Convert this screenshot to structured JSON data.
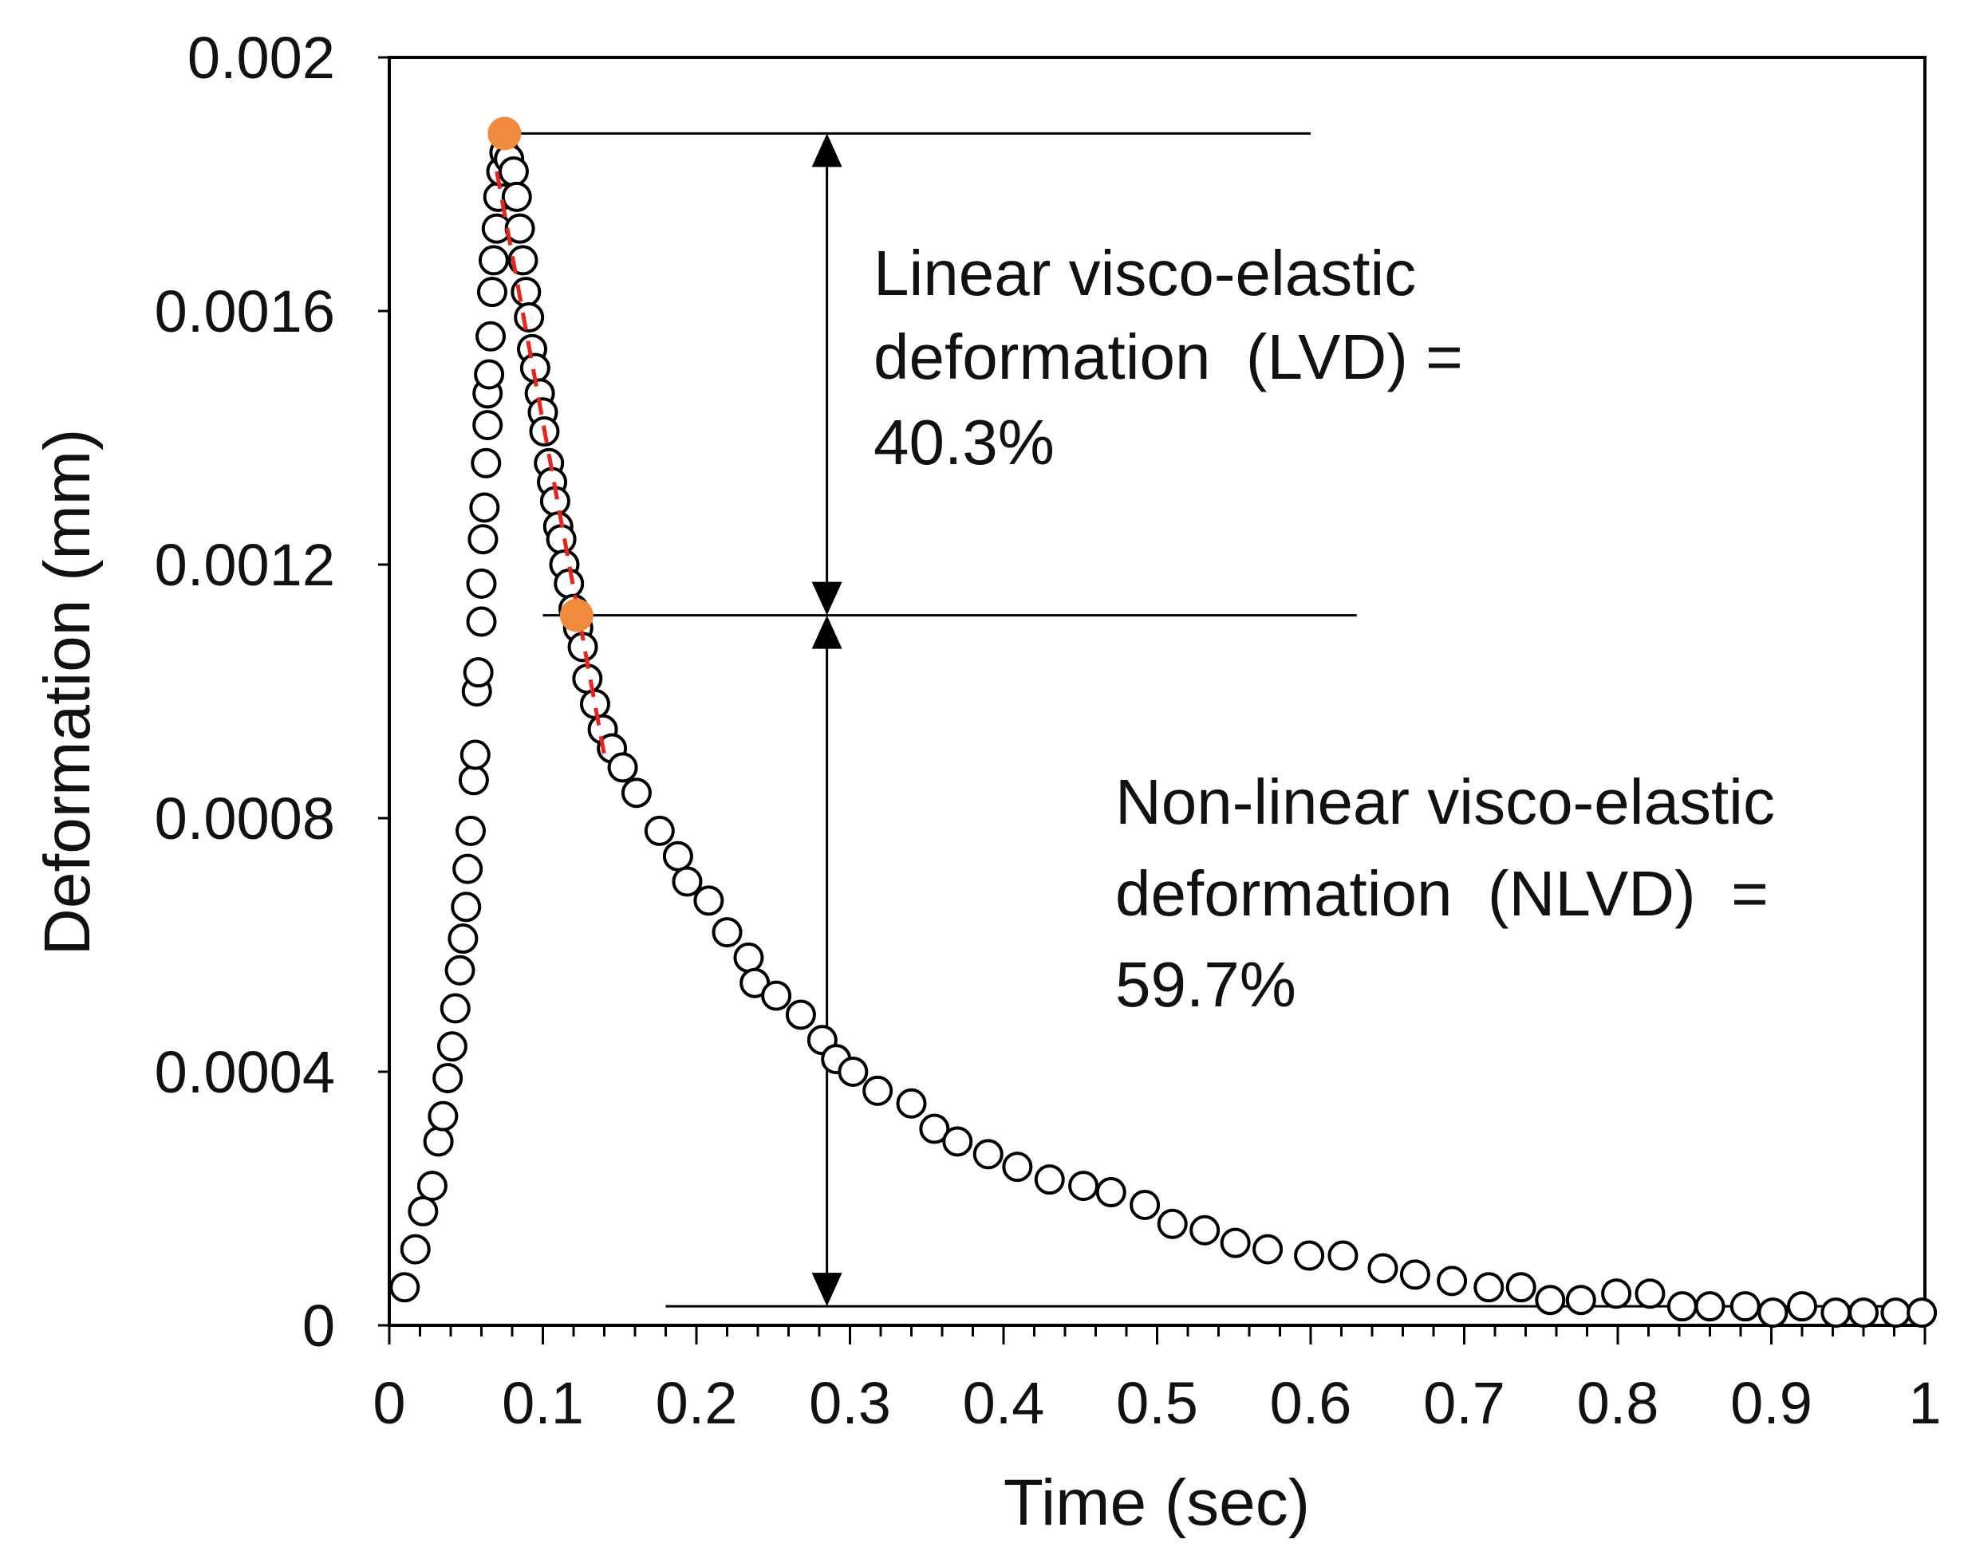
{
  "chart_data": {
    "type": "scatter",
    "xlabel": "Time (sec)",
    "ylabel": "Deformation (mm)",
    "xlim": [
      0,
      1
    ],
    "ylim": [
      0,
      0.002
    ],
    "x_ticks": [
      "0",
      "0.1",
      "0.2",
      "0.3",
      "0.4",
      "0.5",
      "0.6",
      "0.7",
      "0.8",
      "0.9",
      "1"
    ],
    "y_ticks": [
      "0",
      "0.0004",
      "0.0008",
      "0.0012",
      "0.0016",
      "0.002"
    ],
    "grid": false,
    "legend": "none",
    "series": [
      {
        "marker": "open-circle",
        "color": "#000000",
        "points": [
          [
            0.01,
            6e-05
          ],
          [
            0.017,
            0.00012
          ],
          [
            0.022,
            0.00018
          ],
          [
            0.028,
            0.00022
          ],
          [
            0.032,
            0.00029
          ],
          [
            0.035,
            0.00033
          ],
          [
            0.038,
            0.00039
          ],
          [
            0.041,
            0.00044
          ],
          [
            0.043,
            0.0005
          ],
          [
            0.046,
            0.00056
          ],
          [
            0.048,
            0.00061
          ],
          [
            0.05,
            0.00066
          ],
          [
            0.051,
            0.00072
          ],
          [
            0.053,
            0.00078
          ],
          [
            0.055,
            0.00086
          ],
          [
            0.056,
            0.0009
          ],
          [
            0.057,
            0.001
          ],
          [
            0.058,
            0.00103
          ],
          [
            0.06,
            0.00111
          ],
          [
            0.06,
            0.00117
          ],
          [
            0.061,
            0.00124
          ],
          [
            0.062,
            0.00129
          ],
          [
            0.063,
            0.00136
          ],
          [
            0.064,
            0.00142
          ],
          [
            0.064,
            0.00147
          ],
          [
            0.065,
            0.0015
          ],
          [
            0.066,
            0.00156
          ],
          [
            0.067,
            0.00163
          ],
          [
            0.068,
            0.00168
          ],
          [
            0.07,
            0.00173
          ],
          [
            0.071,
            0.00178
          ],
          [
            0.073,
            0.00182
          ],
          [
            0.075,
            0.00185
          ],
          [
            0.078,
            0.00184
          ],
          [
            0.081,
            0.00182
          ],
          [
            0.083,
            0.00178
          ],
          [
            0.085,
            0.00173
          ],
          [
            0.087,
            0.00168
          ],
          [
            0.089,
            0.00163
          ],
          [
            0.091,
            0.00159
          ],
          [
            0.093,
            0.00154
          ],
          [
            0.095,
            0.00151
          ],
          [
            0.098,
            0.00147
          ],
          [
            0.1,
            0.00144
          ],
          [
            0.101,
            0.00141
          ],
          [
            0.104,
            0.00136
          ],
          [
            0.106,
            0.00133
          ],
          [
            0.108,
            0.0013
          ],
          [
            0.11,
            0.00126
          ],
          [
            0.112,
            0.00124
          ],
          [
            0.114,
            0.0012
          ],
          [
            0.117,
            0.00117
          ],
          [
            0.12,
            0.00113
          ],
          [
            0.123,
            0.0011
          ],
          [
            0.126,
            0.00107
          ],
          [
            0.129,
            0.00102
          ],
          [
            0.134,
            0.00098
          ],
          [
            0.139,
            0.00094
          ],
          [
            0.145,
            0.00091
          ],
          [
            0.152,
            0.00088
          ],
          [
            0.161,
            0.00084
          ],
          [
            0.176,
            0.00078
          ],
          [
            0.188,
            0.00074
          ],
          [
            0.194,
            0.0007
          ],
          [
            0.208,
            0.00067
          ],
          [
            0.22,
            0.00062
          ],
          [
            0.234,
            0.00058
          ],
          [
            0.238,
            0.00054
          ],
          [
            0.252,
            0.00052
          ],
          [
            0.268,
            0.00049
          ],
          [
            0.282,
            0.00045
          ],
          [
            0.291,
            0.00042
          ],
          [
            0.302,
            0.0004
          ],
          [
            0.318,
            0.00037
          ],
          [
            0.34,
            0.00035
          ],
          [
            0.355,
            0.00031
          ],
          [
            0.37,
            0.00029
          ],
          [
            0.39,
            0.00027
          ],
          [
            0.409,
            0.00025
          ],
          [
            0.43,
            0.00023
          ],
          [
            0.452,
            0.00022
          ],
          [
            0.47,
            0.00021
          ],
          [
            0.492,
            0.00019
          ],
          [
            0.51,
            0.00016
          ],
          [
            0.531,
            0.00015
          ],
          [
            0.551,
            0.00013
          ],
          [
            0.572,
            0.00012
          ],
          [
            0.599,
            0.00011
          ],
          [
            0.621,
            0.00011
          ],
          [
            0.647,
            9e-05
          ],
          [
            0.668,
            8e-05
          ],
          [
            0.692,
            7e-05
          ],
          [
            0.716,
            6e-05
          ],
          [
            0.737,
            6e-05
          ],
          [
            0.756,
            4e-05
          ],
          [
            0.776,
            4e-05
          ],
          [
            0.799,
            5e-05
          ],
          [
            0.821,
            5e-05
          ],
          [
            0.842,
            3e-05
          ],
          [
            0.86,
            3e-05
          ],
          [
            0.883,
            3e-05
          ],
          [
            0.901,
            2e-05
          ],
          [
            0.92,
            3e-05
          ],
          [
            0.942,
            2e-05
          ],
          [
            0.96,
            2e-05
          ],
          [
            0.981,
            2e-05
          ],
          [
            0.998,
            2e-05
          ]
        ]
      },
      {
        "marker": "filled-circle",
        "color": "#F08A3C",
        "points": [
          [
            0.075,
            0.00188
          ],
          [
            0.122,
            0.00112
          ]
        ]
      }
    ],
    "fit_line": {
      "style": "dashed",
      "color": "#E8231B",
      "from": [
        0.07,
        0.00182
      ],
      "to": [
        0.14,
        0.0009
      ]
    },
    "reference_lines": [
      {
        "y": 0.00188,
        "x_from": 0.075,
        "x_to": 0.6
      },
      {
        "y": 0.00112,
        "x_from": 0.1,
        "x_to": 0.63
      },
      {
        "y": 3e-05,
        "x_from": 0.18,
        "x_to": 0.99
      }
    ],
    "dimension_arrows": [
      {
        "x": 0.285,
        "y_from": 0.00188,
        "y_to": 0.00112
      },
      {
        "x": 0.285,
        "y_from": 0.00112,
        "y_to": 3e-05
      }
    ],
    "annotations": [
      {
        "lines": [
          "Linear visco-elastic",
          "deformation  (LVD) =",
          "40.3%"
        ]
      },
      {
        "lines": [
          "Non-linear visco-elastic",
          "deformation  (NLVD)  =",
          "59.7%"
        ]
      }
    ]
  }
}
